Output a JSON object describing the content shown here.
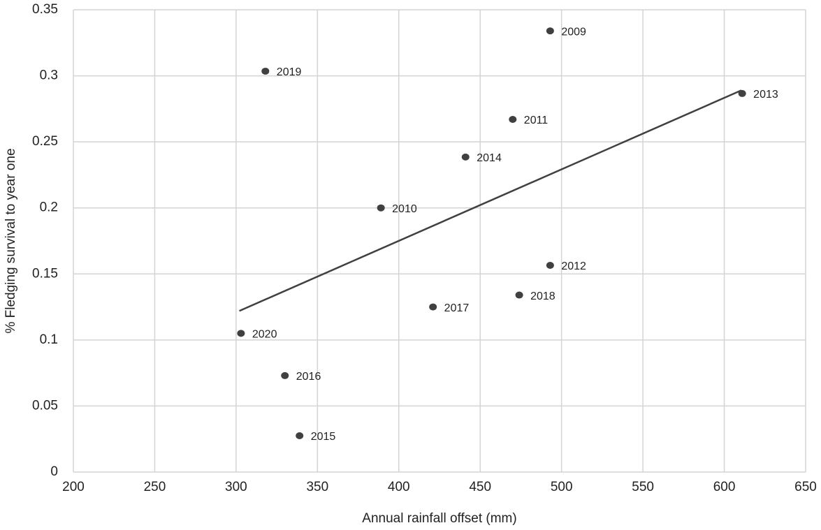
{
  "chart_data": {
    "type": "scatter",
    "x_label": "Annual rainfall offset (mm)",
    "y_label": "% Fledging survival to year one",
    "labels": [
      "2009",
      "2019",
      "2013",
      "2011",
      "2014",
      "2010",
      "2012",
      "2018",
      "2017",
      "2020",
      "2016",
      "2015"
    ],
    "x": [
      493,
      318,
      611,
      470,
      441,
      389,
      493,
      474,
      421,
      303,
      330,
      339
    ],
    "y": [
      0.334,
      0.3035,
      0.2866,
      0.267,
      0.2385,
      0.2,
      0.1565,
      0.134,
      0.125,
      0.105,
      0.073,
      0.0275
    ],
    "color": "#404040",
    "trendline": {
      "x": [
        302,
        610.5
      ],
      "y": [
        0.122,
        0.289
      ],
      "color": "#404040"
    },
    "xlim": [
      200,
      650
    ],
    "xticks": [
      200,
      250,
      300,
      350,
      400,
      450,
      500,
      550,
      600,
      650
    ],
    "ylim": [
      0,
      0.35
    ],
    "yticks": [
      0,
      0.05,
      0.1,
      0.15,
      0.2,
      0.25,
      0.3,
      0.35
    ],
    "grid": true
  }
}
